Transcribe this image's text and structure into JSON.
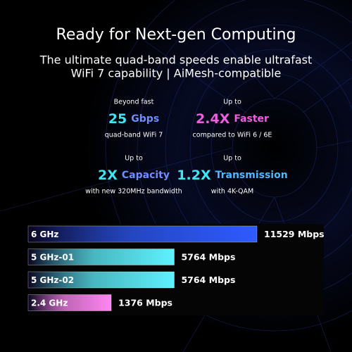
{
  "header": {
    "title": "Ready for Next-gen Computing",
    "subtitle_lines": [
      "The ultimate quad-band speeds enable ultrafast",
      "WiFi 7 capability | AiMesh-compatible"
    ]
  },
  "stats": [
    {
      "top": "Beyond fast",
      "number": "25",
      "word": "Gbps",
      "bottom": "quad-band WiFi 7",
      "number_color": "#3fe6f2",
      "word_color": "#6f8dff"
    },
    {
      "top": "Up to",
      "number": "2.4X",
      "word": "Faster",
      "bottom": "compared to WiFi 6 / 6E",
      "number_color": "#ee5fe0",
      "word_color": "#ee5fe0"
    },
    {
      "top": "Up to",
      "number": "2X",
      "word": "Capacity",
      "bottom": "with new 320MHz bandwidth",
      "number_color": "#3fe6f2",
      "word_color": "#6f8dff"
    },
    {
      "top": "Up to",
      "number": "1.2X",
      "word": "Transmission",
      "bottom": "with 4K-QAM",
      "number_color": "#3fe6f2",
      "word_color": "#4fb8ff"
    }
  ],
  "chart_data": {
    "type": "bar",
    "categories": [
      "6 GHz",
      "5 GHz-01",
      "5 GHz-02",
      "2.4 GHz"
    ],
    "values": [
      11529,
      5764,
      5764,
      1376
    ],
    "value_labels": [
      "11529 Mbps",
      "5764 Mbps",
      "5764 Mbps",
      "1376 Mbps"
    ],
    "colors": [
      "#2f5bff",
      "#5ef2ff",
      "#5ef2ff",
      "#ff86f2"
    ]
  }
}
